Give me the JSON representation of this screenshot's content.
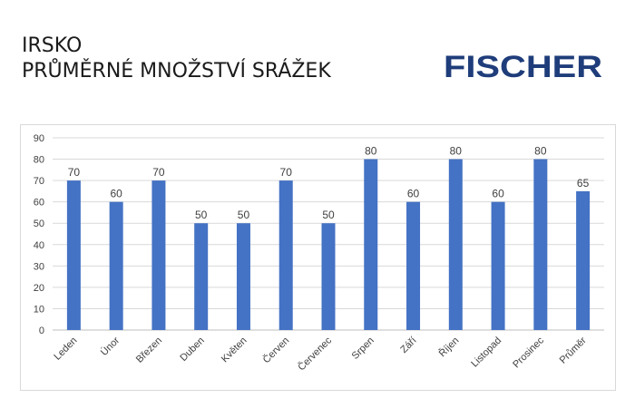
{
  "header": {
    "title_line1": "IRSKO",
    "title_line2": "PRŮMĚRNÉ MNOŽSTVÍ SRÁŽEK"
  },
  "logo": {
    "text": "FISCHER",
    "color": "#1f3d7a"
  },
  "chart_data": {
    "type": "bar",
    "categories": [
      "Leden",
      "Únor",
      "Březen",
      "Duben",
      "Květen",
      "Červen",
      "Červenec",
      "Srpen",
      "Září",
      "Říjen",
      "Listopad",
      "Prosinec",
      "Průměr"
    ],
    "values": [
      70,
      60,
      70,
      50,
      50,
      70,
      50,
      80,
      60,
      80,
      60,
      80,
      65
    ],
    "ylim": [
      0,
      90
    ],
    "yticks": [
      0,
      10,
      20,
      30,
      40,
      50,
      60,
      70,
      80,
      90
    ],
    "grid": true,
    "data_labels": true,
    "legend": "none",
    "bar_color": "#4472c4",
    "title": "",
    "xlabel": "",
    "ylabel": ""
  }
}
